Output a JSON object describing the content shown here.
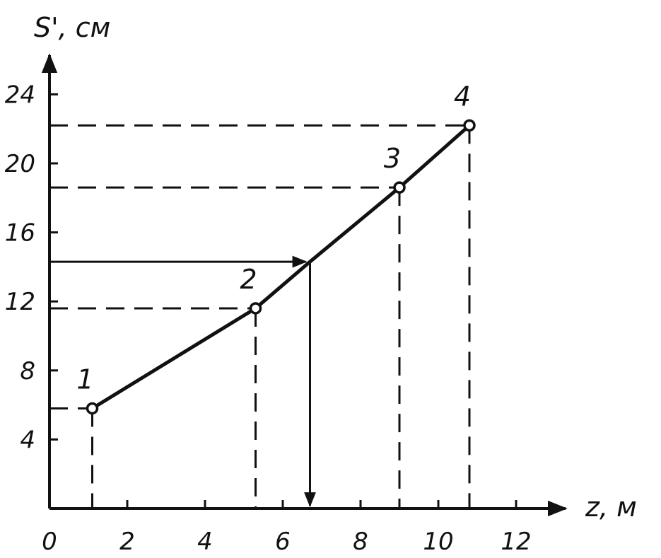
{
  "chart_data": {
    "type": "line",
    "title": "",
    "xlabel": "z, м",
    "ylabel": "S', см",
    "xlim": [
      0,
      13
    ],
    "ylim": [
      0,
      26
    ],
    "x_ticks": [
      0,
      2,
      4,
      6,
      8,
      10,
      12
    ],
    "y_ticks": [
      4,
      8,
      12,
      16,
      20,
      24
    ],
    "x_tick_labels": [
      "0",
      "2",
      "4",
      "6",
      "8",
      "10",
      "12"
    ],
    "y_tick_labels": [
      "4",
      "8",
      "12",
      "16",
      "20",
      "24"
    ],
    "grid": false,
    "series": [
      {
        "x": [
          1.1,
          5.3,
          6.7,
          9.0,
          10.8
        ],
        "y": [
          5.8,
          11.6,
          14.3,
          18.6,
          22.2
        ],
        "point_labels": [
          "1",
          "2",
          "",
          "3",
          "4"
        ]
      }
    ],
    "reference_lines": [
      {
        "style": "dashed",
        "point_index": 0
      },
      {
        "style": "dashed",
        "point_index": 1
      },
      {
        "style": "dashed",
        "point_index": 3
      },
      {
        "style": "dashed",
        "point_index": 4
      }
    ],
    "lookup_arrow": {
      "x": 6.7,
      "y": 14.3
    }
  }
}
